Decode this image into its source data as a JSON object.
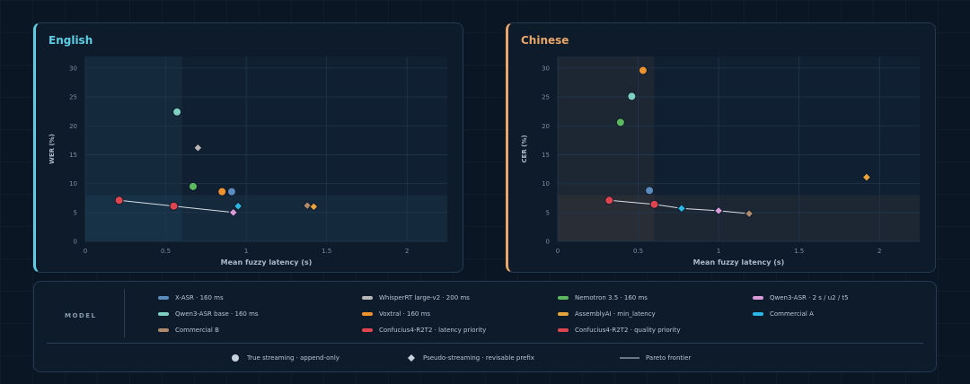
{
  "chart_data": [
    {
      "type": "scatter",
      "title": "English",
      "title_color": "#5ccfe6",
      "xlabel": "Mean fuzzy latency (s)",
      "ylabel": "WER (%)",
      "xlim": [
        0,
        2.25
      ],
      "ylim": [
        0,
        32
      ],
      "xticks": [
        "0",
        "0.5",
        "1",
        "1.5",
        "2"
      ],
      "yticks": [
        "0",
        "5",
        "10",
        "15",
        "20",
        "25",
        "30"
      ],
      "points": [
        {
          "model": "Confucius4-R2T2 · latency priority",
          "x": 0.21,
          "y": 7.1,
          "marker": "circle",
          "color": "#e0454f"
        },
        {
          "model": "Confucius4-R2T2 · quality priority",
          "x": 0.55,
          "y": 6.1,
          "marker": "circle",
          "color": "#e0454f"
        },
        {
          "model": "Qwen3-ASR base · 160 ms",
          "x": 0.57,
          "y": 22.4,
          "marker": "circle",
          "color": "#7fcfc2"
        },
        {
          "model": "WhisperRT large-v2 · 200 ms",
          "x": 0.7,
          "y": 16.2,
          "marker": "diamond",
          "color": "#b8b8b8"
        },
        {
          "model": "Nemotron 3.5 · 160 ms",
          "x": 0.67,
          "y": 9.5,
          "marker": "circle",
          "color": "#5cb85c"
        },
        {
          "model": "Voxtral · 160 ms",
          "x": 0.85,
          "y": 8.6,
          "marker": "circle",
          "color": "#f0922e"
        },
        {
          "model": "X-ASR · 160 ms",
          "x": 0.91,
          "y": 8.6,
          "marker": "circle",
          "color": "#5a8cc0"
        },
        {
          "model": "Qwen3-ASR · 2 s / u2 / t5",
          "x": 0.92,
          "y": 5.0,
          "marker": "diamond",
          "color": "#d99ad8"
        },
        {
          "model": "Commercial A",
          "x": 0.95,
          "y": 6.1,
          "marker": "diamond",
          "color": "#2ab8e6"
        },
        {
          "model": "Commercial B",
          "x": 1.38,
          "y": 6.2,
          "marker": "diamond",
          "color": "#b08a6a"
        },
        {
          "model": "AssemblyAI · min_latency",
          "x": 1.42,
          "y": 6.0,
          "marker": "diamond",
          "color": "#e8a33a"
        }
      ],
      "pareto": [
        [
          0.21,
          7.1
        ],
        [
          0.55,
          6.1
        ],
        [
          0.92,
          5.0
        ]
      ],
      "highlight": {
        "x_max": 0.6,
        "y_max": 8,
        "color": "#5ccfe6"
      }
    },
    {
      "type": "scatter",
      "title": "Chinese",
      "title_color": "#e8a76a",
      "xlabel": "Mean fuzzy latency (s)",
      "ylabel": "CER (%)",
      "xlim": [
        0,
        2.25
      ],
      "ylim": [
        0,
        32
      ],
      "xticks": [
        "0",
        "0.5",
        "1",
        "1.5",
        "2"
      ],
      "yticks": [
        "0",
        "5",
        "10",
        "15",
        "20",
        "25",
        "30"
      ],
      "points": [
        {
          "model": "Voxtral · 160 ms",
          "x": 0.53,
          "y": 29.6,
          "marker": "circle",
          "color": "#f0922e"
        },
        {
          "model": "Qwen3-ASR base · 160 ms",
          "x": 0.46,
          "y": 25.1,
          "marker": "circle",
          "color": "#7fcfc2"
        },
        {
          "model": "Nemotron 3.5 · 160 ms",
          "x": 0.39,
          "y": 20.6,
          "marker": "circle",
          "color": "#5cb85c"
        },
        {
          "model": "AssemblyAI · min_latency",
          "x": 1.92,
          "y": 11.1,
          "marker": "diamond",
          "color": "#e8a33a"
        },
        {
          "model": "X-ASR · 160 ms",
          "x": 0.57,
          "y": 8.8,
          "marker": "circle",
          "color": "#5a8cc0"
        },
        {
          "model": "Confucius4-R2T2 · latency priority",
          "x": 0.32,
          "y": 7.1,
          "marker": "circle",
          "color": "#e0454f"
        },
        {
          "model": "Confucius4-R2T2 · quality priority",
          "x": 0.6,
          "y": 6.4,
          "marker": "circle",
          "color": "#e0454f"
        },
        {
          "model": "Commercial A",
          "x": 0.77,
          "y": 5.7,
          "marker": "diamond",
          "color": "#2ab8e6"
        },
        {
          "model": "Qwen3-ASR · 2 s / u2 / t5",
          "x": 1.0,
          "y": 5.3,
          "marker": "diamond",
          "color": "#d99ad8"
        },
        {
          "model": "Commercial B",
          "x": 1.19,
          "y": 4.8,
          "marker": "diamond",
          "color": "#b08a6a"
        }
      ],
      "pareto": [
        [
          0.32,
          7.1
        ],
        [
          0.6,
          6.4
        ],
        [
          0.77,
          5.7
        ],
        [
          1.0,
          5.3
        ],
        [
          1.19,
          4.8
        ]
      ],
      "highlight": {
        "x_max": 0.6,
        "y_max": 8,
        "color": "#e8a76a"
      }
    }
  ],
  "legend": {
    "label": "MODEL",
    "models": [
      {
        "name": "X-ASR · 160 ms",
        "color": "#5a8cc0"
      },
      {
        "name": "WhisperRT large-v2 · 200 ms",
        "color": "#b8b8b8"
      },
      {
        "name": "Nemotron 3.5 · 160 ms",
        "color": "#5cb85c"
      },
      {
        "name": "Qwen3-ASR · 2 s / u2 / t5",
        "color": "#d99ad8"
      },
      {
        "name": "Qwen3-ASR base · 160 ms",
        "color": "#7fcfc2"
      },
      {
        "name": "Voxtral · 160 ms",
        "color": "#f0922e"
      },
      {
        "name": "AssemblyAI · min_latency",
        "color": "#e8a33a"
      },
      {
        "name": "Commercial A",
        "color": "#2ab8e6"
      },
      {
        "name": "Commercial B",
        "color": "#b08a6a"
      },
      {
        "name": "Confucius4-R2T2 · latency priority",
        "color": "#e0454f"
      },
      {
        "name": "Confucius4-R2T2 · quality priority",
        "color": "#e0454f"
      }
    ],
    "markers": [
      {
        "name": "True streaming · append-only",
        "marker": "circle"
      },
      {
        "name": "Pseudo-streaming · revisable prefix",
        "marker": "diamond"
      },
      {
        "name": "Pareto frontier",
        "marker": "line"
      }
    ]
  }
}
